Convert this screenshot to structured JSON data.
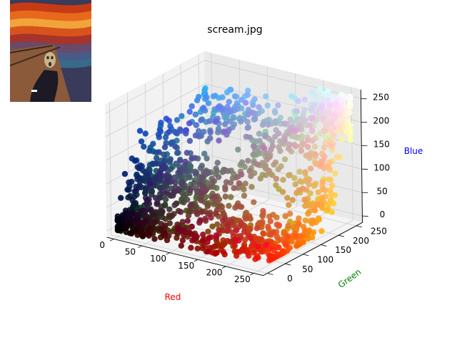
{
  "chart_data": {
    "type": "scatter",
    "projection": "3d",
    "title": "scream.jpg",
    "xlabel": "Red",
    "ylabel": "Green",
    "zlabel": "Blue",
    "xlabel_color": "#ff0000",
    "ylabel_color": "#008000",
    "zlabel_color": "#0000ff",
    "xlim": [
      0,
      255
    ],
    "ylim": [
      0,
      255
    ],
    "zlim": [
      0,
      255
    ],
    "x_ticks": [
      0,
      50,
      100,
      150,
      200,
      250
    ],
    "y_ticks": [
      0,
      50,
      100,
      150,
      200,
      250
    ],
    "z_ticks": [
      0,
      50,
      100,
      150,
      200,
      250
    ],
    "x_tick_labels": [
      "0",
      "50",
      "100",
      "150",
      "200",
      "250"
    ],
    "y_tick_labels": [
      "0",
      "50",
      "100",
      "150",
      "200",
      "250"
    ],
    "z_tick_labels": [
      "0",
      "50",
      "100",
      "150",
      "200",
      "250"
    ],
    "grid": true,
    "point_color_rule": "each point is colored by its own RGB value",
    "inset_image": "thumbnail of The Scream painting in the top-left corner",
    "points_sample": [
      [
        20,
        15,
        10
      ],
      [
        40,
        30,
        20
      ],
      [
        60,
        40,
        25
      ],
      [
        10,
        8,
        5
      ],
      [
        5,
        5,
        5
      ],
      [
        30,
        25,
        40
      ],
      [
        50,
        60,
        90
      ],
      [
        40,
        70,
        130
      ],
      [
        30,
        90,
        170
      ],
      [
        60,
        100,
        190
      ],
      [
        90,
        120,
        210
      ],
      [
        150,
        150,
        160
      ],
      [
        200,
        190,
        180
      ],
      [
        230,
        220,
        210
      ],
      [
        250,
        245,
        240
      ],
      [
        255,
        120,
        0
      ],
      [
        240,
        150,
        30
      ],
      [
        255,
        180,
        60
      ],
      [
        250,
        200,
        100
      ],
      [
        230,
        40,
        10
      ],
      [
        200,
        60,
        20
      ],
      [
        180,
        90,
        40
      ],
      [
        150,
        60,
        30
      ],
      [
        120,
        90,
        60
      ],
      [
        100,
        80,
        70
      ],
      [
        80,
        70,
        60
      ],
      [
        70,
        90,
        110
      ],
      [
        60,
        80,
        120
      ],
      [
        130,
        120,
        100
      ],
      [
        170,
        150,
        120
      ],
      [
        210,
        170,
        90
      ],
      [
        240,
        200,
        150
      ],
      [
        250,
        230,
        190
      ],
      [
        220,
        100,
        20
      ],
      [
        255,
        60,
        0
      ],
      [
        190,
        30,
        10
      ],
      [
        140,
        20,
        10
      ],
      [
        100,
        30,
        20
      ],
      [
        50,
        20,
        10
      ],
      [
        25,
        40,
        60
      ],
      [
        15,
        50,
        90
      ],
      [
        20,
        60,
        110
      ],
      [
        80,
        150,
        220
      ],
      [
        110,
        160,
        230
      ],
      [
        140,
        170,
        220
      ],
      [
        240,
        240,
        230
      ],
      [
        230,
        230,
        245
      ],
      [
        200,
        210,
        220
      ],
      [
        170,
        180,
        190
      ],
      [
        90,
        100,
        100
      ]
    ]
  }
}
